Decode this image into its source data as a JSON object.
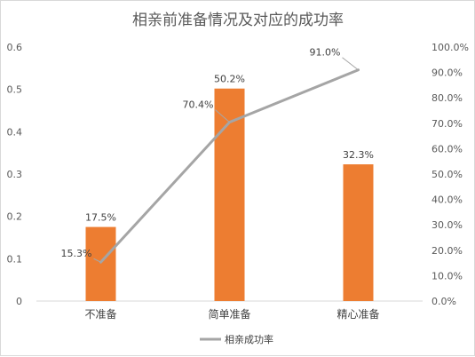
{
  "chart_data": {
    "type": "bar+line",
    "title": "相亲前准备情况及对应的成功率",
    "categories": [
      "不准备",
      "简单准备",
      "精心准备"
    ],
    "series": [
      {
        "type": "bar",
        "axis": "left",
        "values": [
          0.175,
          0.502,
          0.323
        ],
        "labels": [
          "17.5%",
          "50.2%",
          "32.3%"
        ],
        "color": "#ED7D31"
      },
      {
        "name": "相亲成功率",
        "type": "line",
        "axis": "right",
        "values": [
          0.153,
          0.704,
          0.91
        ],
        "labels": [
          "15.3%",
          "70.4%",
          "91.0%"
        ],
        "color": "#A5A5A5"
      }
    ],
    "left_axis": {
      "ylim": [
        0,
        0.6
      ],
      "ticks": [
        "0",
        "0.1",
        "0.2",
        "0.3",
        "0.4",
        "0.5",
        "0.6"
      ]
    },
    "right_axis": {
      "ylim": [
        0,
        1.0
      ],
      "ticks": [
        "0.0%",
        "10.0%",
        "20.0%",
        "30.0%",
        "40.0%",
        "50.0%",
        "60.0%",
        "70.0%",
        "80.0%",
        "90.0%",
        "100.0%"
      ]
    },
    "grid": false,
    "legend": {
      "position": "bottom",
      "entries": [
        "相亲成功率"
      ]
    }
  }
}
